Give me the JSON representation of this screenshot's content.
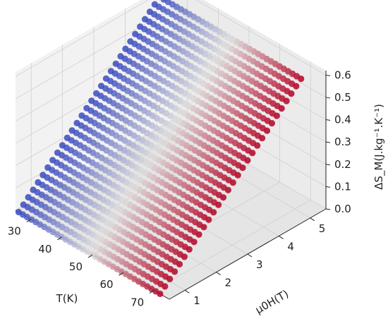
{
  "chart_data": {
    "type": "scatter3d",
    "title": "",
    "xlabel": "T(K)",
    "ylabel": "μ0H(T)",
    "zlabel": "ΔS_M(J.kg⁻¹.K⁻¹)",
    "xlim": [
      25,
      75
    ],
    "ylim": [
      0.5,
      5.5
    ],
    "zlim": [
      0,
      0.62
    ],
    "x_ticks": [
      30,
      40,
      50,
      60,
      70
    ],
    "y_ticks": [
      1,
      2,
      3,
      4,
      5
    ],
    "z_ticks": [
      0.0,
      0.1,
      0.2,
      0.3,
      0.4,
      0.5,
      0.6
    ],
    "x_tick_labels": [
      "30",
      "40",
      "50",
      "60",
      "70"
    ],
    "y_tick_labels": [
      "1",
      "2",
      "3",
      "4",
      "5"
    ],
    "z_tick_labels": [
      "0.0",
      "0.1",
      "0.2",
      "0.3",
      "0.4",
      "0.5",
      "0.6"
    ],
    "temperature_range": [
      26,
      72
    ],
    "field_range": [
      0.5,
      5
    ],
    "entropy_peak": 0.6,
    "colormap": "coolwarm",
    "colormap_colors": [
      "#3b4cc0",
      "#dddcdc",
      "#b40426"
    ],
    "grid": true,
    "pane_color": "#f2f2f2"
  }
}
